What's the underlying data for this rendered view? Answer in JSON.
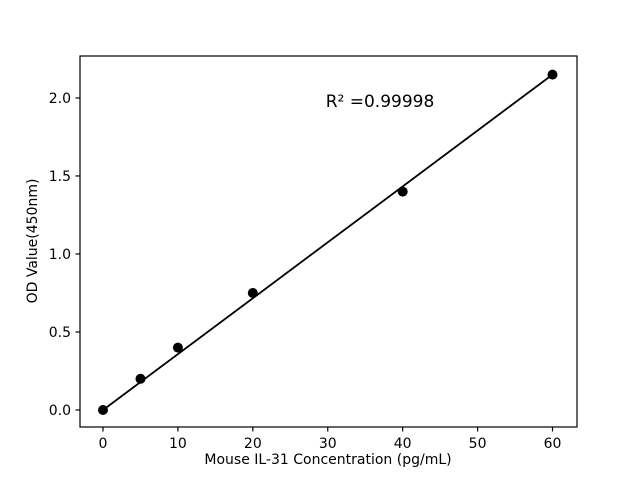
{
  "chart_data": {
    "type": "scatter",
    "title": "",
    "xlabel": "Mouse IL-31 Concentration (pg/mL)",
    "ylabel": "OD Value(450nm)",
    "annotation": "R² =0.99998",
    "x": [
      0,
      5,
      10,
      20,
      40,
      60
    ],
    "y": [
      0.0,
      0.2,
      0.4,
      0.75,
      1.4,
      2.15
    ],
    "fit_line": {
      "x": [
        0,
        60
      ],
      "y": [
        0.0,
        2.15
      ]
    },
    "xticks": [
      "0",
      "10",
      "20",
      "30",
      "40",
      "50",
      "60"
    ],
    "xtick_values": [
      0,
      10,
      20,
      30,
      40,
      50,
      60
    ],
    "yticks": [
      "0.0",
      "0.5",
      "1.0",
      "1.5",
      "2.0"
    ],
    "ytick_values": [
      0.0,
      0.5,
      1.0,
      1.5,
      2.0
    ],
    "xlim": [
      -3.07,
      63.27
    ],
    "ylim": [
      -0.109,
      2.269
    ],
    "grid": false,
    "legend": null,
    "marker_color": "#000000",
    "line_color": "#000000",
    "background_color": "#ffffff"
  }
}
